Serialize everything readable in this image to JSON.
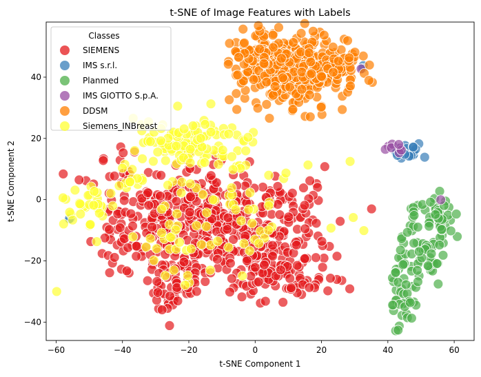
{
  "chart_data": {
    "type": "scatter",
    "title": "t-SNE of Image Features with Labels",
    "xlabel": "t-SNE Component 1",
    "ylabel": "t-SNE Component 2",
    "xlim": [
      -63,
      66
    ],
    "ylim": [
      -46,
      58
    ],
    "xticks": [
      -60,
      -40,
      -20,
      0,
      20,
      40,
      60
    ],
    "yticks": [
      -40,
      -20,
      0,
      20,
      40
    ],
    "grid": false,
    "legend": {
      "title": "Classes",
      "position": "top-left"
    },
    "series": [
      {
        "name": "SIEMENS",
        "color": "#e41a1c",
        "clusters": [
          {
            "cx": -10,
            "cy": -10,
            "sx": 14,
            "sy": 9,
            "n": 340
          },
          {
            "cx": -33,
            "cy": -8,
            "sx": 7,
            "sy": 9,
            "n": 80
          },
          {
            "cx": -20,
            "cy": 2,
            "sx": 14,
            "sy": 6,
            "n": 80
          },
          {
            "cx": 5,
            "cy": -26,
            "sx": 8,
            "sy": 3.5,
            "n": 60
          },
          {
            "cx": -25,
            "cy": -28,
            "sx": 4,
            "sy": 4,
            "n": 40
          },
          {
            "cx": 14,
            "cy": -12,
            "sx": 5,
            "sy": 9,
            "n": 50
          },
          {
            "cx": -40,
            "cy": 6,
            "sx": 3,
            "sy": 2,
            "n": 8
          }
        ]
      },
      {
        "name": "IMS s.r.l.",
        "color": "#377eb8",
        "clusters": [
          {
            "cx": 46,
            "cy": 16,
            "sx": 2.2,
            "sy": 1.8,
            "n": 18
          },
          {
            "cx": 32,
            "cy": 43,
            "sx": 0.5,
            "sy": 0.5,
            "n": 2
          },
          {
            "cx": -56,
            "cy": -6,
            "sx": 0.5,
            "sy": 0.5,
            "n": 2
          }
        ]
      },
      {
        "name": "Planmed",
        "color": "#4daf4a",
        "clusters": [
          {
            "cx": 45,
            "cy": -30,
            "sx": 2,
            "sy": 7,
            "n": 45
          },
          {
            "cx": 51,
            "cy": -14,
            "sx": 3.5,
            "sy": 7,
            "n": 60
          },
          {
            "cx": 56,
            "cy": -5,
            "sx": 2.5,
            "sy": 3,
            "n": 30
          }
        ]
      },
      {
        "name": "IMS GIOTTO S.p.A.",
        "color": "#984ea3",
        "clusters": [
          {
            "cx": 42,
            "cy": 17,
            "sx": 1.2,
            "sy": 1,
            "n": 8
          },
          {
            "cx": 56,
            "cy": 0,
            "sx": 0.3,
            "sy": 0.3,
            "n": 1
          },
          {
            "cx": 32,
            "cy": 42,
            "sx": 0.3,
            "sy": 0.3,
            "n": 1
          }
        ]
      },
      {
        "name": "DDSM",
        "color": "#ff7f00",
        "clusters": [
          {
            "cx": 12,
            "cy": 42,
            "sx": 8,
            "sy": 5.5,
            "n": 340
          },
          {
            "cx": 2,
            "cy": 49,
            "sx": 5,
            "sy": 3,
            "n": 60
          },
          {
            "cx": 24,
            "cy": 44,
            "sx": 4,
            "sy": 2.5,
            "n": 40
          }
        ]
      },
      {
        "name": "Siemens_INBreast",
        "color": "#ffff33",
        "clusters": [
          {
            "cx": -20,
            "cy": 18,
            "sx": 10,
            "sy": 4,
            "n": 110
          },
          {
            "cx": -50,
            "cy": -3,
            "sx": 4,
            "sy": 3.5,
            "n": 35
          },
          {
            "cx": -38,
            "cy": 7,
            "sx": 3,
            "sy": 2,
            "n": 12
          },
          {
            "cx": -5,
            "cy": -2,
            "sx": 14,
            "sy": 10,
            "n": 60
          },
          {
            "cx": -25,
            "cy": -15,
            "sx": 6,
            "sy": 6,
            "n": 18
          }
        ]
      }
    ]
  }
}
